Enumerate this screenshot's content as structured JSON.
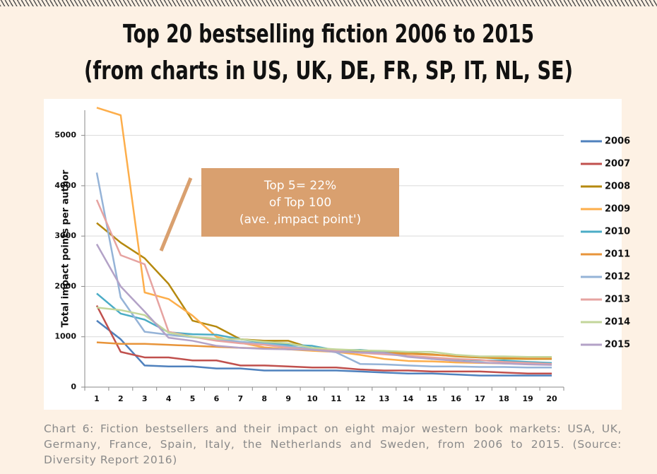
{
  "chart_data": {
    "type": "line",
    "title": "Top 20 bestselling fiction 2006 to 2015",
    "subtitle": "(from charts in US, UK, DE, FR, SP, IT, NL, SE)",
    "y_label": "Total impact points per author",
    "annotation": [
      "Top 5= 22%",
      "of Top 100",
      "(ave. ,impact point')"
    ],
    "caption": "Chart 6: Fiction bestsellers and their impact on eight major western book markets: USA, UK, Germany, France, Spain, Italy, the Netherlands and Sweden, from 2006 to 2015. (Source: Diversity Report 2016)",
    "categories": [
      "1",
      "2",
      "3",
      "4",
      "5",
      "6",
      "7",
      "8",
      "9",
      "10",
      "11",
      "12",
      "13",
      "14",
      "15",
      "16",
      "17",
      "18",
      "19",
      "20"
    ],
    "ylim": [
      0,
      5500
    ],
    "yticks": [
      0,
      1000,
      2000,
      3000,
      4000,
      5000
    ],
    "grid": true,
    "legend": "right",
    "series": [
      {
        "name": "2006",
        "color": "#4f81bd",
        "values": [
          1320,
          950,
          430,
          410,
          410,
          370,
          370,
          330,
          330,
          330,
          330,
          310,
          290,
          270,
          270,
          250,
          230,
          230,
          230,
          230
        ]
      },
      {
        "name": "2007",
        "color": "#c0504d",
        "values": [
          1620,
          700,
          590,
          590,
          530,
          530,
          430,
          430,
          410,
          390,
          390,
          350,
          330,
          330,
          310,
          310,
          310,
          290,
          270,
          270
        ]
      },
      {
        "name": "2008",
        "color": "#b5890f",
        "values": [
          3260,
          2870,
          2560,
          2050,
          1320,
          1200,
          950,
          920,
          920,
          770,
          720,
          720,
          690,
          670,
          650,
          610,
          590,
          570,
          560,
          560
        ]
      },
      {
        "name": "2009",
        "color": "#fdae4b",
        "values": [
          5550,
          5400,
          1880,
          1750,
          1420,
          1000,
          880,
          790,
          750,
          720,
          700,
          640,
          560,
          520,
          510,
          490,
          480,
          470,
          460,
          460
        ]
      },
      {
        "name": "2010",
        "color": "#4bacc6",
        "values": [
          1860,
          1460,
          1340,
          1090,
          1050,
          1040,
          950,
          880,
          840,
          820,
          730,
          740,
          700,
          620,
          560,
          550,
          530,
          530,
          500,
          480
        ]
      },
      {
        "name": "2011",
        "color": "#e8943a",
        "values": [
          890,
          860,
          860,
          840,
          820,
          800,
          780,
          770,
          750,
          740,
          700,
          690,
          680,
          660,
          640,
          620,
          600,
          590,
          570,
          570
        ]
      },
      {
        "name": "2012",
        "color": "#95b3d7",
        "values": [
          4260,
          1780,
          1100,
          1040,
          990,
          950,
          900,
          860,
          810,
          760,
          690,
          460,
          450,
          430,
          410,
          410,
          400,
          400,
          390,
          390
        ]
      },
      {
        "name": "2013",
        "color": "#e6a3a1",
        "values": [
          3720,
          2620,
          2440,
          1100,
          1000,
          920,
          870,
          840,
          780,
          740,
          720,
          680,
          650,
          620,
          590,
          560,
          540,
          500,
          480,
          460
        ]
      },
      {
        "name": "2014",
        "color": "#c3d69b",
        "values": [
          1580,
          1530,
          1430,
          1080,
          1000,
          960,
          950,
          900,
          870,
          780,
          750,
          730,
          720,
          700,
          700,
          640,
          610,
          610,
          600,
          600
        ]
      },
      {
        "name": "2015",
        "color": "#b3a2c7",
        "values": [
          2840,
          2000,
          1500,
          980,
          920,
          820,
          780,
          760,
          750,
          740,
          700,
          690,
          680,
          600,
          560,
          520,
          490,
          470,
          450,
          440
        ]
      }
    ]
  }
}
